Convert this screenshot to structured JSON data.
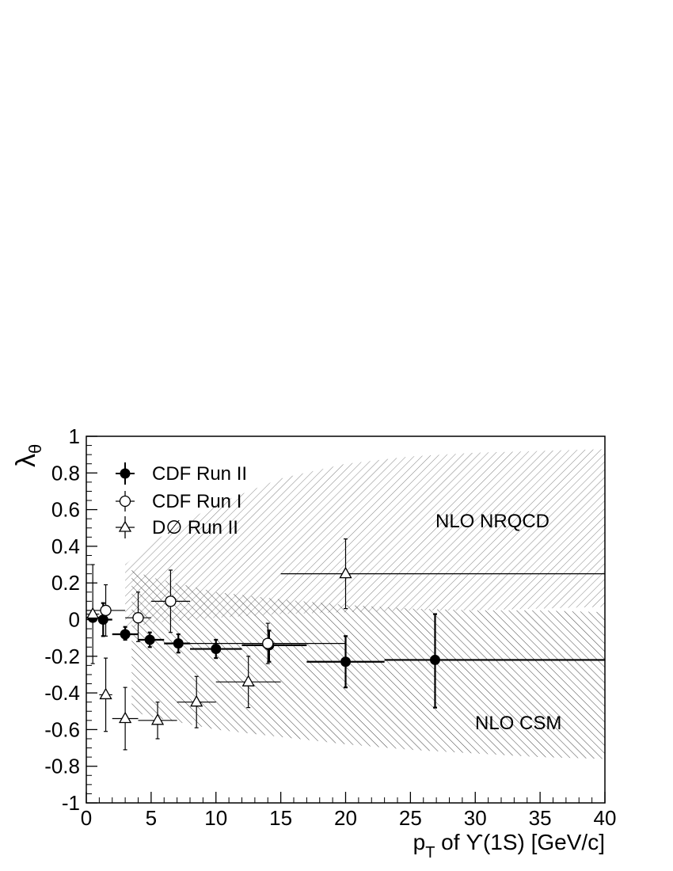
{
  "chart_data": {
    "type": "scatter",
    "xlim": [
      0,
      40
    ],
    "ylim": [
      -1,
      1
    ],
    "x_ticks": [
      0,
      5,
      10,
      15,
      20,
      25,
      30,
      35,
      40
    ],
    "y_ticks": [
      1,
      0.8,
      0.6,
      0.4,
      0.2,
      0,
      -0.2,
      -0.4,
      -0.6,
      -0.8,
      -1
    ],
    "x_tick_labels": [
      "0",
      "5",
      "10",
      "15",
      "20",
      "25",
      "30",
      "35",
      "40"
    ],
    "y_tick_labels": [
      "1",
      "0.8",
      "0.6",
      "0.4",
      "0.2",
      "0",
      "-0.2",
      "-0.4",
      "-0.6",
      "-0.8",
      "-1"
    ],
    "xlabel_main": "p",
    "xlabel_sub": "T",
    "xlabel_rest": " of ϒ(1S) [GeV/c]",
    "ylabel_main": "λ",
    "ylabel_sub": "θ",
    "legend_position": "top-left",
    "bands": [
      {
        "name": "NLO NRQCD",
        "x": [
          3.0,
          5,
          10,
          15,
          20,
          25,
          30,
          35,
          40
        ],
        "upper": [
          0.3,
          0.42,
          0.63,
          0.77,
          0.85,
          0.89,
          0.91,
          0.92,
          0.93
        ],
        "lower": [
          -0.05,
          -0.02,
          0.01,
          0.03,
          0.04,
          0.05,
          0.05,
          0.06,
          0.07
        ]
      },
      {
        "name": "NLO CSM",
        "x": [
          3.5,
          5,
          10,
          15,
          20,
          25,
          30,
          35,
          40
        ],
        "upper": [
          0.27,
          0.23,
          0.15,
          0.11,
          0.08,
          0.06,
          0.05,
          0.05,
          0.04
        ],
        "lower": [
          -0.5,
          -0.53,
          -0.6,
          -0.64,
          -0.68,
          -0.71,
          -0.73,
          -0.75,
          -0.76
        ]
      }
    ],
    "series": [
      {
        "name": "CDF Run II",
        "marker": "filled-circle",
        "points": [
          {
            "x": 0.5,
            "y": 0.01,
            "xerr": [
              0.5,
              0.5
            ],
            "yerr": [
              0.0,
              0.0
            ]
          },
          {
            "x": 1.3,
            "y": 0.0,
            "xerr": [
              0.3,
              0.7
            ],
            "yerr": [
              0.09,
              0.09
            ]
          },
          {
            "x": 3.0,
            "y": -0.08,
            "xerr": [
              1.0,
              1.0
            ],
            "yerr": [
              0.03,
              0.04
            ]
          },
          {
            "x": 4.9,
            "y": -0.11,
            "xerr": [
              0.9,
              1.1
            ],
            "yerr": [
              0.04,
              0.04
            ]
          },
          {
            "x": 7.1,
            "y": -0.13,
            "xerr": [
              1.1,
              0.9
            ],
            "yerr": [
              0.05,
              0.05
            ]
          },
          {
            "x": 10.0,
            "y": -0.16,
            "xerr": [
              2.0,
              2.0
            ],
            "yerr": [
              0.05,
              0.05
            ]
          },
          {
            "x": 14.1,
            "y": -0.14,
            "xerr": [
              2.1,
              2.9
            ],
            "yerr": [
              0.09,
              0.08
            ]
          },
          {
            "x": 20.0,
            "y": -0.23,
            "xerr": [
              3.0,
              3.0
            ],
            "yerr": [
              0.14,
              0.14
            ]
          },
          {
            "x": 26.9,
            "y": -0.22,
            "xerr": [
              3.9,
              13.1
            ],
            "yerr": [
              0.26,
              0.25
            ]
          }
        ]
      },
      {
        "name": "CDF Run I",
        "marker": "open-circle",
        "points": [
          {
            "x": 1.5,
            "y": 0.05,
            "xerr": [
              1.5,
              1.5
            ],
            "yerr": [
              0.14,
              0.14
            ]
          },
          {
            "x": 4.0,
            "y": 0.01,
            "xerr": [
              1.0,
              1.0
            ],
            "yerr": [
              0.13,
              0.14
            ]
          },
          {
            "x": 6.5,
            "y": 0.1,
            "xerr": [
              1.5,
              1.5
            ],
            "yerr": [
              0.17,
              0.17
            ]
          },
          {
            "x": 14.0,
            "y": -0.13,
            "xerr": [
              6.0,
              6.0
            ],
            "yerr": [
              0.11,
              0.11
            ]
          }
        ]
      },
      {
        "name": "D∅ Run II",
        "marker": "open-triangle",
        "points": [
          {
            "x": 0.5,
            "y": 0.03,
            "xerr": [
              0.5,
              0.5
            ],
            "yerr": [
              0.27,
              0.27
            ]
          },
          {
            "x": 1.5,
            "y": -0.41,
            "xerr": [
              0.5,
              0.5
            ],
            "yerr": [
              0.2,
              0.2
            ]
          },
          {
            "x": 3.0,
            "y": -0.54,
            "xerr": [
              1.0,
              1.0
            ],
            "yerr": [
              0.17,
              0.17
            ]
          },
          {
            "x": 5.5,
            "y": -0.55,
            "xerr": [
              1.5,
              1.5
            ],
            "yerr": [
              0.1,
              0.1
            ]
          },
          {
            "x": 8.5,
            "y": -0.45,
            "xerr": [
              1.5,
              1.5
            ],
            "yerr": [
              0.14,
              0.14
            ]
          },
          {
            "x": 12.5,
            "y": -0.34,
            "xerr": [
              2.5,
              2.5
            ],
            "yerr": [
              0.14,
              0.14
            ]
          },
          {
            "x": 20.0,
            "y": 0.25,
            "xerr": [
              5.0,
              20.0
            ],
            "yerr": [
              0.19,
              0.19
            ]
          }
        ]
      }
    ]
  }
}
